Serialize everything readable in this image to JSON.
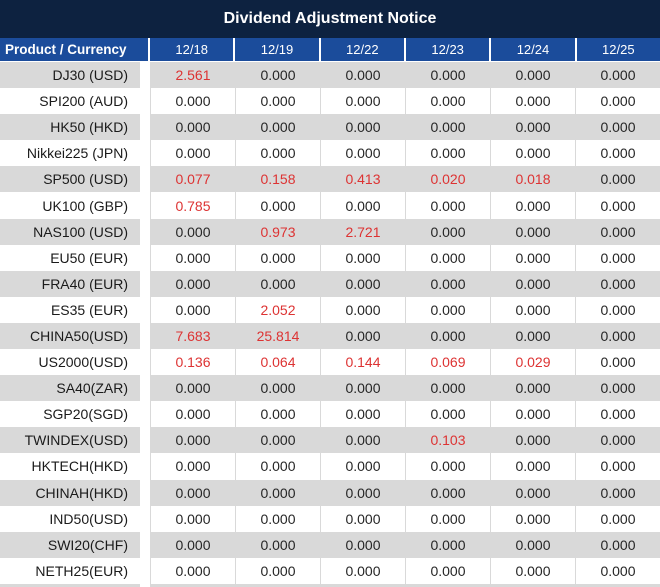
{
  "title": "Dividend Adjustment Notice",
  "table": {
    "product_header": "Product / Currency",
    "date_headers": [
      "12/18",
      "12/19",
      "12/22",
      "12/23",
      "12/24",
      "12/25"
    ],
    "rows": [
      {
        "product": "DJ30 (USD)",
        "values": [
          "2.561",
          "0.000",
          "0.000",
          "0.000",
          "0.000",
          "0.000"
        ],
        "red": [
          0
        ]
      },
      {
        "product": "SPI200 (AUD)",
        "values": [
          "0.000",
          "0.000",
          "0.000",
          "0.000",
          "0.000",
          "0.000"
        ],
        "red": []
      },
      {
        "product": "HK50 (HKD)",
        "values": [
          "0.000",
          "0.000",
          "0.000",
          "0.000",
          "0.000",
          "0.000"
        ],
        "red": []
      },
      {
        "product": "Nikkei225 (JPN)",
        "values": [
          "0.000",
          "0.000",
          "0.000",
          "0.000",
          "0.000",
          "0.000"
        ],
        "red": []
      },
      {
        "product": "SP500 (USD)",
        "values": [
          "0.077",
          "0.158",
          "0.413",
          "0.020",
          "0.018",
          "0.000"
        ],
        "red": [
          0,
          1,
          2,
          3,
          4
        ]
      },
      {
        "product": "UK100 (GBP)",
        "values": [
          "0.785",
          "0.000",
          "0.000",
          "0.000",
          "0.000",
          "0.000"
        ],
        "red": [
          0
        ]
      },
      {
        "product": "NAS100 (USD)",
        "values": [
          "0.000",
          "0.973",
          "2.721",
          "0.000",
          "0.000",
          "0.000"
        ],
        "red": [
          1,
          2
        ]
      },
      {
        "product": "EU50 (EUR)",
        "values": [
          "0.000",
          "0.000",
          "0.000",
          "0.000",
          "0.000",
          "0.000"
        ],
        "red": []
      },
      {
        "product": "FRA40 (EUR)",
        "values": [
          "0.000",
          "0.000",
          "0.000",
          "0.000",
          "0.000",
          "0.000"
        ],
        "red": []
      },
      {
        "product": "ES35 (EUR)",
        "values": [
          "0.000",
          "2.052",
          "0.000",
          "0.000",
          "0.000",
          "0.000"
        ],
        "red": [
          1
        ]
      },
      {
        "product": "CHINA50(USD)",
        "values": [
          "7.683",
          "25.814",
          "0.000",
          "0.000",
          "0.000",
          "0.000"
        ],
        "red": [
          0,
          1
        ]
      },
      {
        "product": "US2000(USD)",
        "values": [
          "0.136",
          "0.064",
          "0.144",
          "0.069",
          "0.029",
          "0.000"
        ],
        "red": [
          0,
          1,
          2,
          3,
          4
        ]
      },
      {
        "product": "SA40(ZAR)",
        "values": [
          "0.000",
          "0.000",
          "0.000",
          "0.000",
          "0.000",
          "0.000"
        ],
        "red": []
      },
      {
        "product": "SGP20(SGD)",
        "values": [
          "0.000",
          "0.000",
          "0.000",
          "0.000",
          "0.000",
          "0.000"
        ],
        "red": []
      },
      {
        "product": "TWINDEX(USD)",
        "values": [
          "0.000",
          "0.000",
          "0.000",
          "0.103",
          "0.000",
          "0.000"
        ],
        "red": [
          3
        ]
      },
      {
        "product": "HKTECH(HKD)",
        "values": [
          "0.000",
          "0.000",
          "0.000",
          "0.000",
          "0.000",
          "0.000"
        ],
        "red": []
      },
      {
        "product": "CHINAH(HKD)",
        "values": [
          "0.000",
          "0.000",
          "0.000",
          "0.000",
          "0.000",
          "0.000"
        ],
        "red": []
      },
      {
        "product": "IND50(USD)",
        "values": [
          "0.000",
          "0.000",
          "0.000",
          "0.000",
          "0.000",
          "0.000"
        ],
        "red": []
      },
      {
        "product": "SWI20(CHF)",
        "values": [
          "0.000",
          "0.000",
          "0.000",
          "0.000",
          "0.000",
          "0.000"
        ],
        "red": []
      },
      {
        "product": "NETH25(EUR)",
        "values": [
          "0.000",
          "0.000",
          "0.000",
          "0.000",
          "0.000",
          "0.000"
        ],
        "red": []
      }
    ]
  },
  "colors": {
    "title_bg": "#0d2240",
    "header_bg": "#1b4c9b",
    "stripe": "#d9d9d9",
    "red": "#dd3333",
    "header_text": "#ffffff"
  }
}
